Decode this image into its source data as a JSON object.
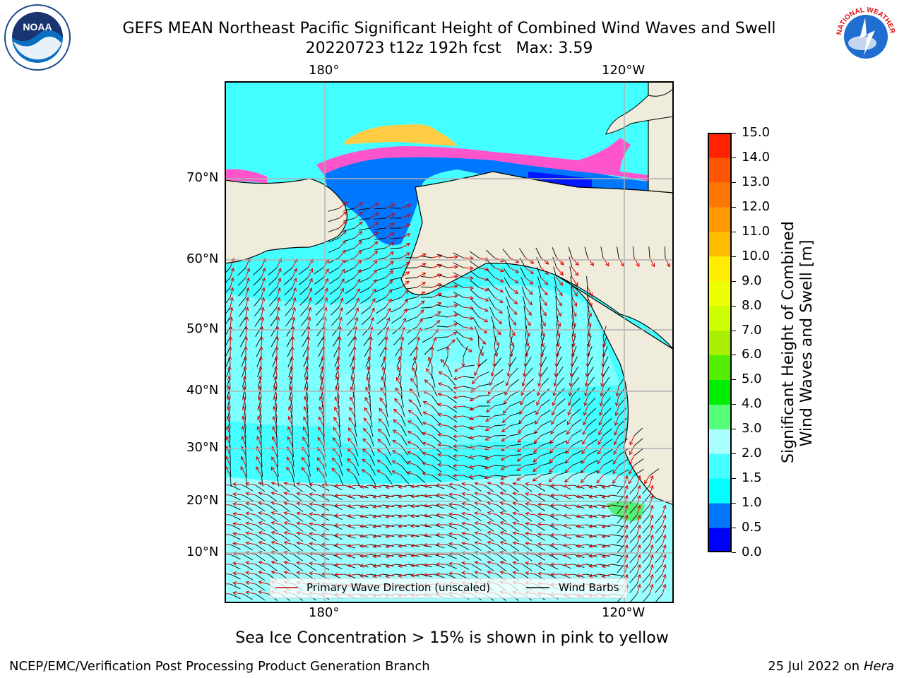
{
  "chart_data": {
    "type": "heatmap",
    "title": "GEFS MEAN Northeast Pacific Significant Height of Combined Wind Waves and Swell",
    "subtitle": "20220723 t12z 192h fcst   Max: 3.59",
    "x_tick_labels": [
      "180°",
      "120°W"
    ],
    "y_tick_labels": [
      "70°N",
      "60°N",
      "50°N",
      "40°N",
      "30°N",
      "20°N",
      "10°N"
    ],
    "colorbar": {
      "label_line1": "Significant Height of Combined",
      "label_line2": "Wind Waves and Swell [m]",
      "ticks": [
        "15.0",
        "14.0",
        "13.0",
        "12.0",
        "11.0",
        "10.0",
        "9.0",
        "8.0",
        "7.0",
        "6.0",
        "5.0",
        "4.0",
        "3.0",
        "2.0",
        "1.5",
        "1.0",
        "0.5",
        "0.0"
      ],
      "levels": [
        0.0,
        0.5,
        1.0,
        1.5,
        2.0,
        3.0,
        4.0,
        5.0,
        6.0,
        7.0,
        8.0,
        9.0,
        10.0,
        11.0,
        12.0,
        13.0,
        14.0,
        15.0
      ],
      "colors": [
        "#0000ff",
        "#0077ff",
        "#00ffff",
        "#44ffff",
        "#aaffff",
        "#55ff77",
        "#00ee00",
        "#55ee00",
        "#aaee00",
        "#ccff00",
        "#eeff00",
        "#ffee00",
        "#ffbb00",
        "#ff9900",
        "#ff7700",
        "#ff5500",
        "#ff2200"
      ]
    },
    "legend": {
      "placement": "bottom",
      "entries": [
        "Primary Wave Direction (unscaled)",
        "Wind Barbs"
      ],
      "colors": [
        "#dd0000",
        "#000000"
      ]
    },
    "grid": true,
    "max_value": 3.59
  },
  "caption": "Sea Ice Concentration > 15% is shown in pink to yellow",
  "footer": {
    "left": "NCEP/EMC/Verification Post Processing Product Generation Branch",
    "right_date": "25 Jul 2022 on ",
    "right_host": "Hera"
  },
  "logos": {
    "left": "NOAA",
    "right": "NATIONAL WEATHER SERVICE"
  },
  "colors": {
    "land": "#efecdc",
    "ocean_base": "#44ffff",
    "ocean_light": "#aaffff"
  }
}
